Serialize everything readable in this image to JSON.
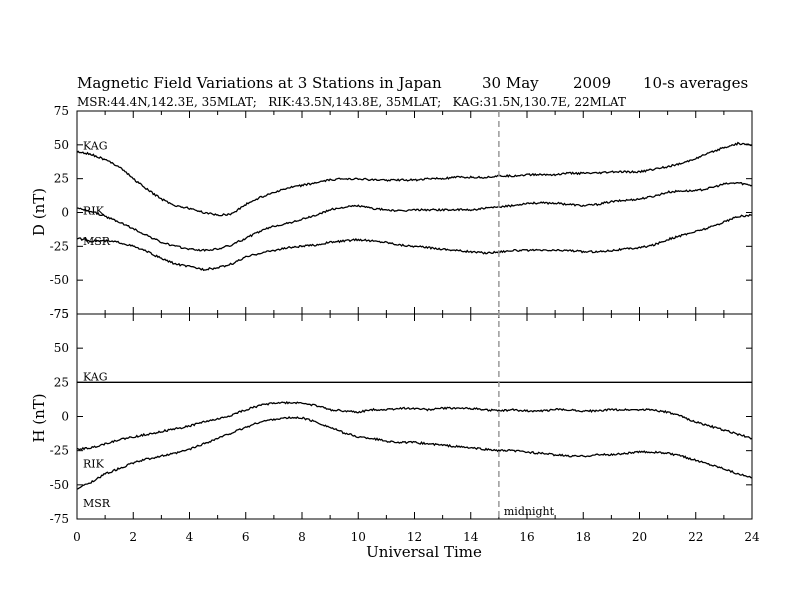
{
  "chart_data": [
    {
      "type": "line",
      "panel": "D",
      "title": "Magnetic Field Variations at 3 Stations in Japan",
      "date_day": "30 May",
      "date_year": "2009",
      "averaging": "10-s averages",
      "subtitle": "MSR:44.4N,142.3E, 35MLAT;   RIK:43.5N,143.8E, 35MLAT;   KAG:31.5N,130.7E, 22MLAT",
      "ylabel": "D (nT)",
      "xlabel": "Universal Time",
      "xlim": [
        0,
        24
      ],
      "ylim": [
        -75,
        75
      ],
      "y_ticks": [
        "75",
        "50",
        "25",
        "0",
        "-25",
        "-50",
        "-75"
      ],
      "series": [
        {
          "name": "KAG",
          "x": [
            0,
            0.5,
            1,
            1.5,
            2,
            2.5,
            3,
            3.5,
            4,
            4.5,
            5,
            5.5,
            6,
            6.5,
            7,
            7.5,
            8,
            8.5,
            9,
            9.5,
            10,
            10.5,
            11,
            11.5,
            12,
            12.5,
            13,
            13.5,
            14,
            14.5,
            15,
            15.5,
            16,
            16.5,
            17,
            17.5,
            18,
            18.5,
            19,
            19.5,
            20,
            20.5,
            21,
            21.5,
            22,
            22.5,
            23,
            23.5,
            24
          ],
          "values": [
            45,
            43,
            39,
            34,
            25,
            17,
            10,
            5,
            3,
            0,
            -2,
            -1,
            6,
            11,
            15,
            18,
            20,
            22,
            24,
            25,
            25,
            24,
            24,
            24,
            24,
            25,
            25,
            26,
            26,
            26,
            27,
            27,
            28,
            28,
            28,
            29,
            29,
            29,
            30,
            30,
            30,
            32,
            34,
            36,
            40,
            44,
            48,
            51,
            50
          ]
        },
        {
          "name": "RIK",
          "x": [
            0,
            0.5,
            1,
            1.5,
            2,
            2.5,
            3,
            3.5,
            4,
            4.5,
            5,
            5.5,
            6,
            6.5,
            7,
            7.5,
            8,
            8.5,
            9,
            9.5,
            10,
            10.5,
            11,
            11.5,
            12,
            12.5,
            13,
            13.5,
            14,
            14.5,
            15,
            15.5,
            16,
            16.5,
            17,
            17.5,
            18,
            18.5,
            19,
            19.5,
            20,
            20.5,
            21,
            21.5,
            22,
            22.5,
            23,
            23.5,
            24
          ],
          "values": [
            3,
            1,
            -3,
            -7,
            -12,
            -17,
            -22,
            -25,
            -27,
            -28,
            -27,
            -24,
            -19,
            -14,
            -10,
            -8,
            -5,
            -2,
            2,
            4,
            5,
            3,
            2,
            1,
            2,
            2,
            2,
            2,
            2,
            3,
            4,
            5,
            7,
            7,
            7,
            6,
            5,
            6,
            8,
            9,
            10,
            12,
            15,
            16,
            16,
            18,
            21,
            22,
            20
          ]
        },
        {
          "name": "MSR",
          "x": [
            0,
            0.5,
            1,
            1.5,
            2,
            2.5,
            3,
            3.5,
            4,
            4.5,
            5,
            5.5,
            6,
            6.5,
            7,
            7.5,
            8,
            8.5,
            9,
            9.5,
            10,
            10.5,
            11,
            11.5,
            12,
            12.5,
            13,
            13.5,
            14,
            14.5,
            15,
            15.5,
            16,
            16.5,
            17,
            17.5,
            18,
            18.5,
            19,
            19.5,
            20,
            20.5,
            21,
            21.5,
            22,
            22.5,
            23,
            23.5,
            24
          ],
          "values": [
            -19,
            -21,
            -21,
            -22,
            -25,
            -29,
            -34,
            -38,
            -40,
            -42,
            -41,
            -38,
            -33,
            -30,
            -28,
            -26,
            -25,
            -24,
            -22,
            -21,
            -20,
            -21,
            -22,
            -24,
            -25,
            -26,
            -27,
            -28,
            -29,
            -30,
            -29,
            -28,
            -28,
            -28,
            -28,
            -28,
            -29,
            -29,
            -28,
            -27,
            -26,
            -24,
            -20,
            -17,
            -14,
            -11,
            -7,
            -3,
            -2
          ]
        }
      ]
    },
    {
      "type": "line",
      "panel": "H",
      "ylabel": "H (nT)",
      "xlabel": "Universal Time",
      "xlim": [
        0,
        24
      ],
      "ylim": [
        -75,
        75
      ],
      "y_ticks": [
        "75",
        "50",
        "25",
        "0",
        "-25",
        "-50",
        "-75"
      ],
      "x_ticks": [
        "0",
        "2",
        "4",
        "6",
        "8",
        "10",
        "12",
        "14",
        "16",
        "18",
        "20",
        "22",
        "24"
      ],
      "annotation": "midnight",
      "annotation_x": 15,
      "series": [
        {
          "name": "KAG",
          "x": [
            0,
            6,
            12,
            18,
            24
          ],
          "values": [
            25,
            25,
            25,
            25,
            25
          ]
        },
        {
          "name": "RIK",
          "x": [
            0,
            0.5,
            1,
            1.5,
            2,
            2.5,
            3,
            3.5,
            4,
            4.5,
            5,
            5.5,
            6,
            6.5,
            7,
            7.5,
            8,
            8.5,
            9,
            9.5,
            10,
            10.5,
            11,
            11.5,
            12,
            12.5,
            13,
            13.5,
            14,
            14.5,
            15,
            15.5,
            16,
            16.5,
            17,
            17.5,
            18,
            18.5,
            19,
            19.5,
            20,
            20.5,
            21,
            21.5,
            22,
            22.5,
            23,
            23.5,
            24
          ],
          "values": [
            -24,
            -23,
            -20,
            -17,
            -15,
            -13,
            -11,
            -9,
            -7,
            -4,
            -2,
            1,
            5,
            8,
            10,
            10,
            10,
            8,
            5,
            4,
            3,
            5,
            5,
            6,
            6,
            5,
            6,
            6,
            6,
            5,
            4,
            5,
            4,
            4,
            5,
            5,
            4,
            4,
            5,
            5,
            5,
            5,
            3,
            0,
            -4,
            -7,
            -10,
            -13,
            -16
          ]
        },
        {
          "name": "MSR",
          "x": [
            0,
            0.5,
            1,
            1.5,
            2,
            2.5,
            3,
            3.5,
            4,
            4.5,
            5,
            5.5,
            6,
            6.5,
            7,
            7.5,
            8,
            8.5,
            9,
            9.5,
            10,
            10.5,
            11,
            11.5,
            12,
            12.5,
            13,
            13.5,
            14,
            14.5,
            15,
            15.5,
            16,
            16.5,
            17,
            17.5,
            18,
            18.5,
            19,
            19.5,
            20,
            20.5,
            21,
            21.5,
            22,
            22.5,
            23,
            23.5,
            24
          ],
          "values": [
            -53,
            -48,
            -42,
            -38,
            -34,
            -31,
            -29,
            -27,
            -24,
            -20,
            -16,
            -12,
            -8,
            -4,
            -2,
            -1,
            -1,
            -4,
            -8,
            -12,
            -15,
            -16,
            -18,
            -19,
            -19,
            -20,
            -21,
            -22,
            -23,
            -24,
            -25,
            -25,
            -26,
            -27,
            -28,
            -29,
            -29,
            -28,
            -28,
            -27,
            -26,
            -26,
            -27,
            -29,
            -32,
            -35,
            -38,
            -42,
            -45
          ]
        }
      ]
    }
  ]
}
